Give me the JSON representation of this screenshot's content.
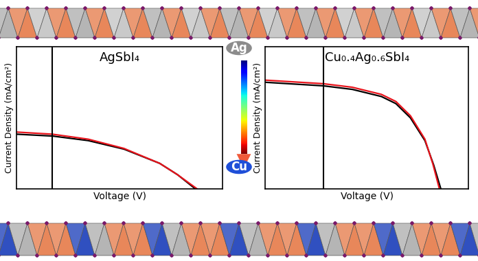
{
  "chart_data": [
    {
      "type": "line",
      "title": "AgSbI₄",
      "xlabel": "Voltage (V)",
      "ylabel": "Current Density (mA/cm²)",
      "xlim": [
        -0.2,
        0.95
      ],
      "ylim": [
        0,
        1
      ],
      "xticks": [],
      "yticks": [],
      "tick_labels": false,
      "vlines": [
        0
      ],
      "series": [
        {
          "color": "#000000",
          "x": [
            -0.2,
            0,
            0.2,
            0.4,
            0.6,
            0.7,
            0.8
          ],
          "values": [
            0.385,
            0.372,
            0.34,
            0.28,
            0.18,
            0.1,
            0.0
          ]
        },
        {
          "color": "#e8141c",
          "x": [
            -0.2,
            0,
            0.2,
            0.4,
            0.6,
            0.7,
            0.81
          ],
          "values": [
            0.4,
            0.385,
            0.35,
            0.285,
            0.18,
            0.1,
            0.0
          ]
        }
      ]
    },
    {
      "type": "line",
      "title": "Cu₀.₄Ag₀.₆SbI₄",
      "xlabel": "Voltage (V)",
      "ylabel": "Current Density (mA/cm²)",
      "xlim": [
        -0.4,
        1.0
      ],
      "ylim": [
        0,
        1
      ],
      "xticks": [],
      "yticks": [],
      "tick_labels": false,
      "vlines": [
        0
      ],
      "series": [
        {
          "color": "#000000",
          "x": [
            -0.4,
            0,
            0.2,
            0.4,
            0.5,
            0.6,
            0.7,
            0.76,
            0.81
          ],
          "values": [
            0.75,
            0.725,
            0.7,
            0.65,
            0.6,
            0.5,
            0.34,
            0.17,
            0.0
          ]
        },
        {
          "color": "#e8141c",
          "x": [
            -0.4,
            0,
            0.2,
            0.4,
            0.5,
            0.6,
            0.7,
            0.755,
            0.8
          ],
          "values": [
            0.765,
            0.74,
            0.715,
            0.665,
            0.615,
            0.515,
            0.35,
            0.175,
            0.0
          ]
        }
      ]
    }
  ],
  "gradient_arrow": {
    "start": "Ag",
    "end": "Cu"
  }
}
